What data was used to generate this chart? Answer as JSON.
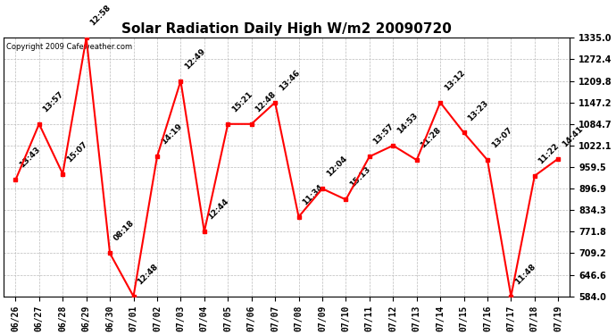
{
  "title": "Solar Radiation Daily High W/m2 20090720",
  "copyright": "Copyright 2009 Cafeweather.com",
  "x_labels": [
    "06/26",
    "06/27",
    "06/28",
    "06/29",
    "06/30",
    "07/01",
    "07/02",
    "07/03",
    "07/04",
    "07/05",
    "07/06",
    "07/07",
    "07/08",
    "07/09",
    "07/10",
    "07/11",
    "07/12",
    "07/13",
    "07/14",
    "07/15",
    "07/16",
    "07/17",
    "07/18",
    "07/19"
  ],
  "y_values": [
    922.0,
    1084.7,
    940.0,
    1335.0,
    709.2,
    584.0,
    990.0,
    1209.8,
    771.8,
    1084.7,
    1084.7,
    1147.2,
    815.0,
    896.9,
    865.0,
    990.0,
    1022.1,
    980.0,
    1147.2,
    1059.5,
    980.0,
    584.0,
    934.0,
    984.0
  ],
  "annotations": [
    "13:43",
    "13:57",
    "15:07",
    "12:58",
    "08:18",
    "12:48",
    "14:19",
    "12:49",
    "12:44",
    "15:21",
    "12:48",
    "13:46",
    "11:34",
    "12:04",
    "15:13",
    "13:57",
    "14:53",
    "11:28",
    "13:12",
    "13:23",
    "13:07",
    "11:48",
    "11:22",
    "14:41"
  ],
  "line_color": "#ff0000",
  "marker_color": "#ff0000",
  "background_color": "#ffffff",
  "grid_color": "#bbbbbb",
  "ylim": [
    584.0,
    1335.0
  ],
  "yticks": [
    584.0,
    646.6,
    709.2,
    771.8,
    834.3,
    896.9,
    959.5,
    1022.1,
    1084.7,
    1147.2,
    1209.8,
    1272.4,
    1335.0
  ],
  "title_fontsize": 11,
  "annotation_fontsize": 6.5,
  "copyright_fontsize": 6,
  "tick_fontsize": 7,
  "ytick_fontsize": 7
}
